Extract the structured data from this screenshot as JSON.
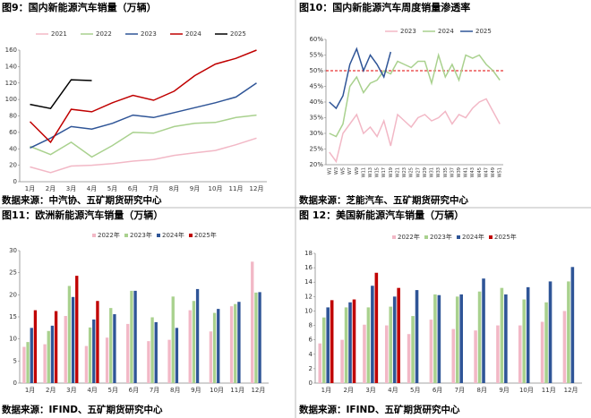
{
  "chart_data": [
    {
      "type": "line",
      "title": "图9：国内新能源汽车销量（万辆）",
      "source": "数据来源：中汽协、五矿期货研究中心",
      "categories": [
        "1月",
        "2月",
        "3月",
        "4月",
        "5月",
        "6月",
        "7月",
        "8月",
        "9月",
        "10月",
        "11月",
        "12月"
      ],
      "ylim": [
        0,
        160
      ],
      "yticks": [
        0,
        20,
        40,
        60,
        80,
        100,
        120,
        140,
        160
      ],
      "series": [
        {
          "name": "2021",
          "color": "#f2b8c6",
          "values": [
            18,
            11,
            19,
            20,
            22,
            25,
            27,
            32,
            35,
            38,
            45,
            53
          ]
        },
        {
          "name": "2022",
          "color": "#a9d18e",
          "values": [
            43,
            33,
            48,
            30,
            44,
            60,
            59,
            67,
            71,
            72,
            78,
            81
          ]
        },
        {
          "name": "2023",
          "color": "#2f5597",
          "values": [
            41,
            53,
            67,
            64,
            71,
            81,
            78,
            84,
            90,
            96,
            103,
            120
          ]
        },
        {
          "name": "2024",
          "color": "#c00000",
          "values": [
            73,
            48,
            88,
            85,
            96,
            105,
            99,
            110,
            129,
            143,
            150,
            160
          ]
        },
        {
          "name": "2025",
          "color": "#000000",
          "values": [
            94,
            89,
            124,
            123,
            null,
            null,
            null,
            null,
            null,
            null,
            null,
            null
          ]
        }
      ]
    },
    {
      "type": "line",
      "title": "图10：国内新能源汽车周度销量渗透率",
      "source": "数据来源：芝能汽车、五矿期货研究中心",
      "categories": [
        "W1",
        "W3",
        "W5",
        "W7",
        "W9",
        "W11",
        "W13",
        "W15",
        "W17",
        "W19",
        "W21",
        "W23",
        "W25",
        "W27",
        "W29",
        "W31",
        "W33",
        "W35",
        "W37",
        "W39",
        "W41",
        "W43",
        "W45",
        "W47",
        "W49",
        "W51"
      ],
      "ylim": [
        20,
        60
      ],
      "yticks": [
        {
          "value": 20,
          "label": "20%"
        },
        {
          "value": 25,
          "label": "25%"
        },
        {
          "value": 30,
          "label": "30%"
        },
        {
          "value": 35,
          "label": "35%"
        },
        {
          "value": 40,
          "label": "40%"
        },
        {
          "value": 45,
          "label": "45%"
        },
        {
          "value": 50,
          "label": "50%"
        },
        {
          "value": 55,
          "label": "55%"
        },
        {
          "value": 60,
          "label": "60%"
        }
      ],
      "reference_line": {
        "value": 50,
        "color": "#e00000"
      },
      "series": [
        {
          "name": "2023",
          "color": "#f2b8c6",
          "values": [
            24,
            21,
            30,
            33,
            36,
            30,
            32,
            29,
            34,
            26,
            36,
            34,
            32,
            35,
            36,
            34,
            35,
            37,
            33,
            36,
            35,
            38,
            40,
            41,
            37,
            33
          ]
        },
        {
          "name": "2024",
          "color": "#a9d18e",
          "values": [
            30,
            29,
            33,
            45,
            48,
            43,
            46,
            47,
            50,
            49,
            53,
            52,
            51,
            53,
            53,
            46,
            55,
            48,
            52,
            47,
            55,
            54,
            55,
            52,
            50,
            47
          ]
        },
        {
          "name": "2025",
          "color": "#2f5597",
          "values": [
            40,
            38,
            42,
            52,
            57,
            50,
            55,
            52,
            48,
            56,
            null,
            null,
            null,
            null,
            null,
            null,
            null,
            null,
            null,
            null,
            null,
            null,
            null,
            null,
            null,
            null
          ]
        }
      ]
    },
    {
      "type": "bar",
      "title": "图11：欧洲新能源汽车销量（万辆）",
      "source": "数据来源：IFIND、五矿期货研究中心",
      "categories": [
        "1月",
        "2月",
        "3月",
        "4月",
        "5月",
        "6月",
        "7月",
        "8月",
        "9月",
        "10月",
        "11月",
        "12月"
      ],
      "ylim": [
        0,
        30
      ],
      "yticks": [
        0,
        5,
        10,
        15,
        20,
        25,
        30
      ],
      "series": [
        {
          "name": "2022年",
          "color": "#f2b8c6",
          "values": [
            8.2,
            8.8,
            15.2,
            8.4,
            10.3,
            13.4,
            9.5,
            9.8,
            16.5,
            11.7,
            17.4,
            27.5
          ]
        },
        {
          "name": "2023年",
          "color": "#a9d18e",
          "values": [
            9.3,
            11.8,
            22,
            12.6,
            17,
            20.9,
            14.9,
            19.6,
            18.6,
            15.9,
            17.9,
            20.5
          ]
        },
        {
          "name": "2024年",
          "color": "#2f5597",
          "values": [
            12.5,
            13,
            19.5,
            14.4,
            15.6,
            20.9,
            13.8,
            12.5,
            21.3,
            16.8,
            18.4,
            20.6
          ]
        },
        {
          "name": "2025年",
          "color": "#c00000",
          "values": [
            16.5,
            16.3,
            24.3,
            18.6,
            null,
            null,
            null,
            null,
            null,
            null,
            null,
            null
          ]
        }
      ]
    },
    {
      "type": "bar",
      "title": "图 12：美国新能源汽车销量（万辆）",
      "source": "数据来源：IFIND、五矿期货研究中心",
      "categories": [
        "1月",
        "2月",
        "3月",
        "4月",
        "5月",
        "6月",
        "7月",
        "8月",
        "9月",
        "10月",
        "11月",
        "12月"
      ],
      "ylim": [
        0,
        18
      ],
      "yticks": [
        0,
        2,
        4,
        6,
        8,
        10,
        12,
        14,
        16,
        18
      ],
      "series": [
        {
          "name": "2022年",
          "color": "#f2b8c6",
          "values": [
            5.5,
            6,
            8.1,
            8,
            6.8,
            8.8,
            7.5,
            7.3,
            8,
            8,
            8.5,
            10
          ]
        },
        {
          "name": "2023年",
          "color": "#a9d18e",
          "values": [
            9.1,
            10.5,
            10.5,
            10.6,
            9.3,
            12.3,
            12,
            12.7,
            13.2,
            11.6,
            11.2,
            14.1
          ]
        },
        {
          "name": "2024年",
          "color": "#2f5597",
          "values": [
            10.5,
            11.2,
            13.5,
            12,
            12.9,
            12.2,
            12.3,
            14.5,
            12.3,
            13.3,
            14.1,
            16.1
          ]
        },
        {
          "name": "2025年",
          "color": "#c00000",
          "values": [
            11.5,
            11.6,
            15.3,
            13.2,
            null,
            null,
            null,
            null,
            null,
            null,
            null,
            null
          ]
        }
      ]
    }
  ]
}
